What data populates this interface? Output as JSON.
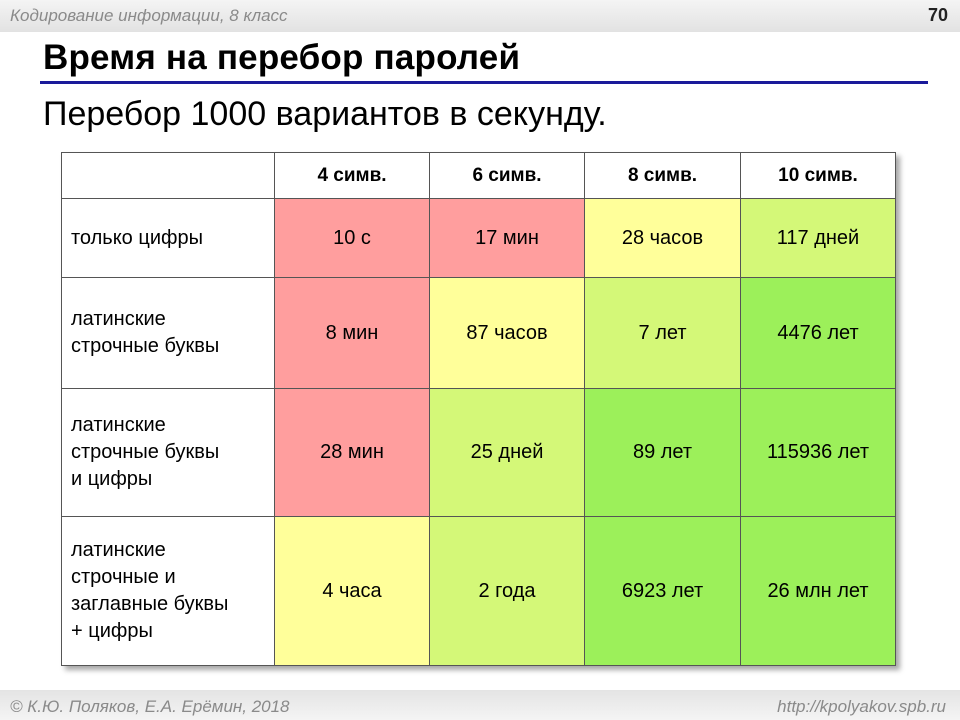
{
  "header": {
    "course_title": "Кодирование информации, 8 класс",
    "page_number": "70"
  },
  "slide": {
    "title": "Время на перебор паролей",
    "subtitle": "Перебор 1000 вариантов в секунду."
  },
  "table": {
    "columns": [
      "4 симв.",
      "6 симв.",
      "8 симв.",
      "10 симв."
    ],
    "rows": [
      {
        "label": [
          "только цифры"
        ],
        "cells": [
          {
            "value": "10 с",
            "color": "#ff9e9e"
          },
          {
            "value": "17 мин",
            "color": "#ff9e9e"
          },
          {
            "value": "28 часов",
            "color": "#ffff9a"
          },
          {
            "value": "117 дней",
            "color": "#d4f878"
          }
        ]
      },
      {
        "label": [
          "латинские",
          "строчные буквы"
        ],
        "cells": [
          {
            "value": "8 мин",
            "color": "#ff9e9e"
          },
          {
            "value": "87 часов",
            "color": "#ffff9a"
          },
          {
            "value": "7 лет",
            "color": "#d4f878"
          },
          {
            "value": "4476 лет",
            "color": "#9cf05a"
          }
        ]
      },
      {
        "label": [
          "латинские",
          "строчные буквы",
          "и цифры"
        ],
        "cells": [
          {
            "value": "28 мин",
            "color": "#ff9e9e"
          },
          {
            "value": "25 дней",
            "color": "#d4f878"
          },
          {
            "value": "89 лет",
            "color": "#9cf05a"
          },
          {
            "value": "115936 лет",
            "color": "#9cf05a"
          }
        ]
      },
      {
        "label": [
          "латинские",
          "строчные и",
          "заглавные буквы",
          "+ цифры"
        ],
        "cells": [
          {
            "value": "4 часа",
            "color": "#ffff9a"
          },
          {
            "value": "2 года",
            "color": "#d4f878"
          },
          {
            "value": "6923 лет",
            "color": "#9cf05a"
          },
          {
            "value": "26 млн лет",
            "color": "#9cf05a"
          }
        ]
      }
    ]
  },
  "footer": {
    "copyright": "© К.Ю. Поляков, Е.А. Ерёмин, 2018",
    "url": "http://kpolyakov.spb.ru"
  }
}
